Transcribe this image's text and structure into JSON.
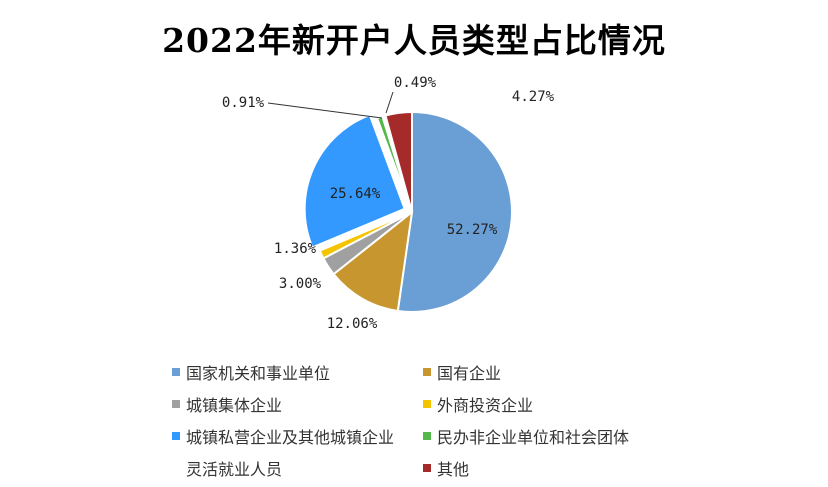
{
  "chart_data": {
    "type": "pie",
    "title": "2022年新开户人员类型占比情况",
    "series": [
      {
        "name": "国家机关和事业单位",
        "value": 52.27,
        "label": "52.27%",
        "color": "#6a9fd5"
      },
      {
        "name": "国有企业",
        "value": 12.06,
        "label": "12.06%",
        "color": "#c8962e"
      },
      {
        "name": "城镇集体企业",
        "value": 3.0,
        "label": "3.00%",
        "color": "#a0a0a0"
      },
      {
        "name": "外商投资企业",
        "value": 1.36,
        "label": "1.36%",
        "color": "#f5c400"
      },
      {
        "name": "城镇私营企业及其他城镇企业",
        "value": 25.64,
        "label": "25.64%",
        "color": "#3399ff"
      },
      {
        "name": "民办非企业单位和社会团体",
        "value": 0.91,
        "label": "0.91%",
        "color": "#55b84a"
      },
      {
        "name": "灵活就业人员",
        "value": 0.49,
        "label": "0.49%",
        "color": "#ffffff"
      },
      {
        "name": "其他",
        "value": 4.27,
        "label": "4.27%",
        "color": "#a52a2a"
      }
    ],
    "legend_position": "bottom"
  }
}
